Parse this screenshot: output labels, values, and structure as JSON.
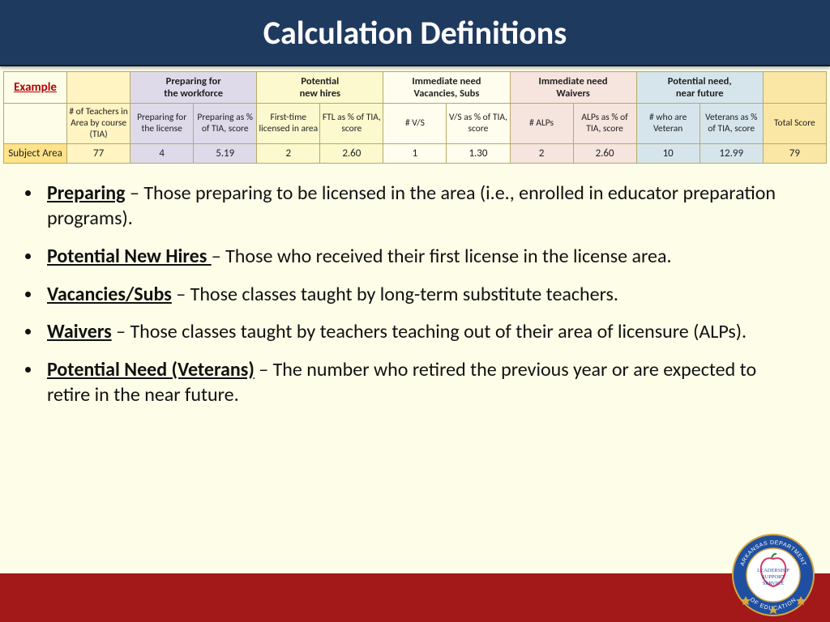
{
  "title": "Calculation Definitions",
  "colors": {
    "page_bg": "#fdfde8",
    "header_bg": "#1f3a5f",
    "footer_bg": "#a31919",
    "border": "#b7a96b",
    "example_text": "#b00000",
    "group_yellow": "#fff4c2",
    "group_lav": "#dedaea",
    "group_lyellow": "#fbf9cd",
    "group_cream": "#fefdee",
    "group_pink": "#f6e4de",
    "group_blue": "#d6e5ec",
    "group_gold": "#fbe7a5",
    "row_label_bg": "#ffe38a"
  },
  "table": {
    "example_label": "Example",
    "groups": [
      {
        "label": "",
        "span": 1,
        "bg": "#fff4c2"
      },
      {
        "label": "Preparing for the workforce",
        "span": 2,
        "bg": "#dedaea"
      },
      {
        "label": "Potential new hires",
        "span": 2,
        "bg": "#fbf9cd"
      },
      {
        "label": "Immediate need Vacancies, Subs",
        "span": 2,
        "bg": "#fefdee"
      },
      {
        "label": "Immediate need Waivers",
        "span": 2,
        "bg": "#f6e4de"
      },
      {
        "label": "Potential need, near future",
        "span": 2,
        "bg": "#d6e5ec"
      },
      {
        "label": "",
        "span": 1,
        "bg": "#fbe7a5"
      }
    ],
    "subheaders": [
      {
        "label": "# of Teachers in Area by course (TIA)",
        "bg": "#fff4c2"
      },
      {
        "label": "Preparing for the license",
        "bg": "#dedaea"
      },
      {
        "label": "Preparing as % of TIA, score",
        "bg": "#dedaea"
      },
      {
        "label": "First-time licensed in area",
        "bg": "#fbf9cd"
      },
      {
        "label": "FTL as % of TIA, score",
        "bg": "#fbf9cd"
      },
      {
        "label": "# V/S",
        "bg": "#fefdee"
      },
      {
        "label": "V/S as % of TIA, score",
        "bg": "#fefdee"
      },
      {
        "label": "# ALPs",
        "bg": "#f6e4de"
      },
      {
        "label": "ALPs as % of TIA, score",
        "bg": "#f6e4de"
      },
      {
        "label": "# who are Veteran",
        "bg": "#d6e5ec"
      },
      {
        "label": "Veterans as % of TIA, score",
        "bg": "#d6e5ec"
      },
      {
        "label": "Total Score",
        "bg": "#fbe7a5"
      }
    ],
    "row_label": "Subject Area",
    "values": [
      "77",
      "4",
      "5.19",
      "2",
      "2.60",
      "1",
      "1.30",
      "2",
      "2.60",
      "10",
      "12.99",
      "79"
    ],
    "value_bgs": [
      "#fff4c2",
      "#dedaea",
      "#dedaea",
      "#fbf9cd",
      "#fbf9cd",
      "#fefdee",
      "#fefdee",
      "#f6e4de",
      "#f6e4de",
      "#d6e5ec",
      "#d6e5ec",
      "#fbe7a5"
    ]
  },
  "bullets": [
    {
      "term": "Preparing",
      "rest": " – Those preparing to be licensed in the area (i.e., enrolled in educator preparation programs)."
    },
    {
      "term": "Potential New Hires ",
      "rest": "– Those who received their first license in the license area."
    },
    {
      "term": "Vacancies/Subs",
      "rest": " – Those classes taught by long-term substitute teachers."
    },
    {
      "term": "Waivers",
      "rest": " – Those classes taught by teachers teaching out of their area of licensure (ALPs)."
    },
    {
      "term": "Potential Need  (Veterans)",
      "rest": " – The number who retired the previous year or are expected to retire in the near future."
    }
  ],
  "seal": {
    "outer_text": "ARKANSAS DEPARTMENT OF EDUCATION",
    "inner_lines": [
      "LEADERSHIP",
      "SUPPORT",
      "SERVICE"
    ],
    "outer_ring": "#1f4fa0",
    "gold": "#d6a741",
    "star": "#d6a741",
    "inner_bg": "#ffffff",
    "apple": "#d0355f"
  }
}
